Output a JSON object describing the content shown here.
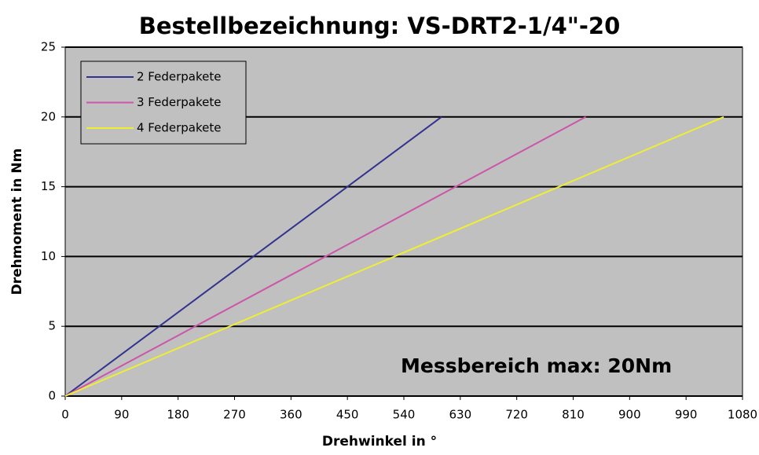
{
  "chart_data": {
    "type": "line",
    "title": "Bestellbezeichnung: VS-DRT2-1/4\"-20",
    "xlabel": "Drehwinkel in °",
    "ylabel": "Drehmoment in Nm",
    "annotation": "Messbereich max: 20Nm",
    "xlim": [
      0,
      1080
    ],
    "xticks": [
      0,
      90,
      180,
      270,
      360,
      450,
      540,
      630,
      720,
      810,
      900,
      990,
      1080
    ],
    "ylim": [
      0,
      25
    ],
    "yticks": [
      0,
      5,
      10,
      15,
      20,
      25
    ],
    "grid": true,
    "legend": "upper left",
    "background": "#c0c0c0",
    "series": [
      {
        "name": "2 Federpakete",
        "color": "#33338f",
        "x": [
          0,
          600
        ],
        "values": [
          0,
          20
        ]
      },
      {
        "name": "3 Federpakete",
        "color": "#cc55aa",
        "x": [
          0,
          830
        ],
        "values": [
          0,
          20
        ]
      },
      {
        "name": "4 Federpakete",
        "color": "#eeee33",
        "x": [
          0,
          1050
        ],
        "values": [
          0,
          20
        ]
      }
    ]
  }
}
